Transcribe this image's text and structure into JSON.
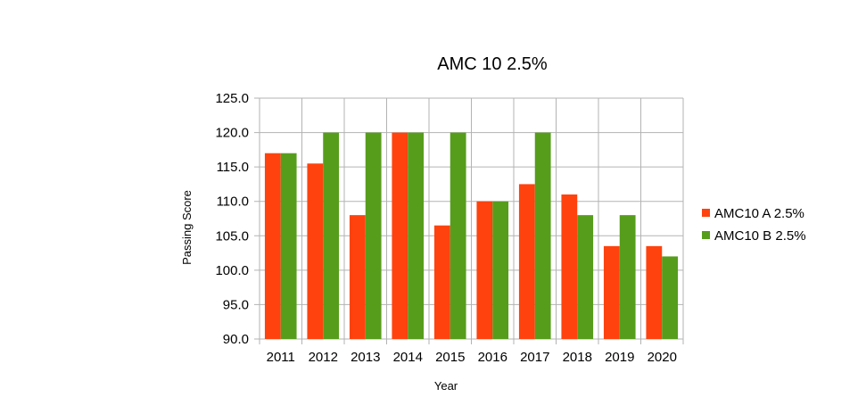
{
  "chart_data": {
    "type": "bar",
    "title": "AMC 10 2.5%",
    "xlabel": "Year",
    "ylabel": "Passing Score",
    "ylim": [
      90.0,
      125.0
    ],
    "ytick_step": 5,
    "yticks": [
      "125.0",
      "120.0",
      "115.0",
      "110.0",
      "105.0",
      "100.0",
      "95.0",
      "90.0"
    ],
    "grid": true,
    "legend_position": "right",
    "categories": [
      "2011",
      "2012",
      "2013",
      "2014",
      "2015",
      "2016",
      "2017",
      "2018",
      "2019",
      "2020"
    ],
    "series": [
      {
        "name": "AMC10 A 2.5%",
        "color": "#ff420e",
        "values": [
          117.0,
          115.5,
          108.0,
          120.0,
          106.5,
          110.0,
          112.5,
          111.0,
          103.5,
          103.5
        ]
      },
      {
        "name": "AMC10 B 2.5%",
        "color": "#579d1c",
        "values": [
          117.0,
          120.0,
          120.0,
          120.0,
          120.0,
          110.0,
          120.0,
          108.0,
          108.0,
          102.0
        ]
      }
    ]
  }
}
